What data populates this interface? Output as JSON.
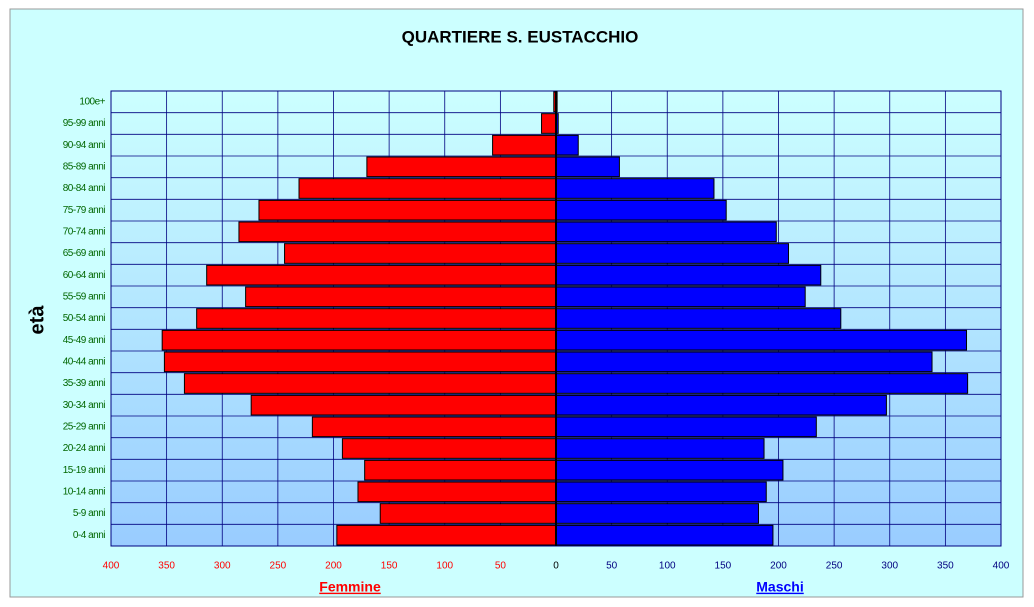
{
  "chart_data": {
    "type": "pyramid",
    "title": "QUARTIERE S. EUSTACCHIO",
    "y_label": "età",
    "categories": [
      "0-4 anni",
      "5-9 anni",
      "10-14 anni",
      "15-19 anni",
      "20-24 anni",
      "25-29 anni",
      "30-34 anni",
      "35-39 anni",
      "40-44 anni",
      "45-49 anni",
      "50-54 anni",
      "55-59 anni",
      "60-64 anni",
      "65-69 anni",
      "70-74 anni",
      "75-79 anni",
      "80-84 anni",
      "85-89 anni",
      "90-94 anni",
      "95-99 anni",
      "100e+"
    ],
    "series": [
      {
        "name": "Femmine",
        "color": "#ff0000",
        "values": [
          -197,
          -158,
          -178,
          -172,
          -192,
          -219,
          -274,
          -334,
          -352,
          -354,
          -323,
          -279,
          -314,
          -244,
          -285,
          -267,
          -231,
          -170,
          -57,
          -13,
          -2
        ]
      },
      {
        "name": "Maschi",
        "color": "#0000ff",
        "values": [
          195,
          182,
          189,
          204,
          187,
          234,
          297,
          370,
          338,
          369,
          256,
          224,
          238,
          209,
          198,
          153,
          142,
          57,
          20,
          2,
          1
        ]
      }
    ],
    "xlim": [
      -400,
      400
    ],
    "xticks": [
      {
        "value": -400,
        "label": "400"
      },
      {
        "value": -350,
        "label": "350"
      },
      {
        "value": -300,
        "label": "300"
      },
      {
        "value": -250,
        "label": "250"
      },
      {
        "value": -200,
        "label": "200"
      },
      {
        "value": -150,
        "label": "150"
      },
      {
        "value": -100,
        "label": "100"
      },
      {
        "value": -50,
        "label": "50"
      },
      0,
      50,
      100,
      150,
      200,
      250,
      300,
      350,
      400
    ],
    "grid": true
  }
}
